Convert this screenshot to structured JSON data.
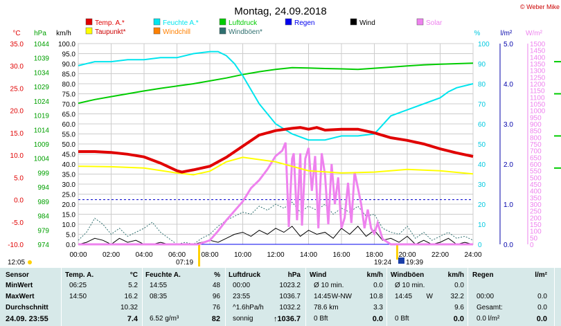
{
  "chart_data": {
    "type": "line",
    "title": "Montag, 24.09.2018",
    "copyright": "© Weber Mike",
    "legend": [
      {
        "label": "Temp. A.*",
        "color": "#e00000"
      },
      {
        "label": "Feuchte A.*",
        "color": "#00e5ee"
      },
      {
        "label": "Luftdruck",
        "color": "#00cc00"
      },
      {
        "label": "Regen",
        "color": "#0000ee"
      },
      {
        "label": "Wind",
        "color": "#000000"
      },
      {
        "label": "Solar",
        "color": "#ee82ee"
      },
      {
        "label": "Taupunkt*",
        "color": "#ffff00"
      },
      {
        "label": "Windchill",
        "color": "#ff8000"
      },
      {
        "label": "Windböen*",
        "color": "#2f6f6f"
      }
    ],
    "axes": {
      "temp": {
        "unit": "°C",
        "min": -10,
        "max": 35,
        "step": 5,
        "color": "#e00000"
      },
      "pressure": {
        "unit": "hPa",
        "min": 974,
        "max": 1044,
        "step": 5,
        "color": "#00a000"
      },
      "wind": {
        "unit": "km/h",
        "min": 0,
        "max": 100,
        "step": 5,
        "color": "#000000"
      },
      "humidity": {
        "unit": "%",
        "min": 0,
        "max": 100,
        "step": 10,
        "color": "#00c8e0"
      },
      "rain": {
        "unit": "l/m²",
        "min": 0,
        "max": 5,
        "step": 1,
        "color": "#0000aa"
      },
      "solar": {
        "unit": "W/m²",
        "min": 0,
        "max": 1500,
        "step": 50,
        "color": "#ee82ee"
      },
      "x_ticks": [
        "00:00",
        "02:00",
        "04:00",
        "06:00",
        "08:00",
        "10:00",
        "12:00",
        "14:00",
        "16:00",
        "18:00",
        "20:00",
        "22:00",
        "24:00"
      ]
    },
    "markers": {
      "sunrise_left": "12:05",
      "sunrise": "07:19",
      "sunset": "19:24",
      "moonrise": "19:39"
    },
    "series": {
      "temp": {
        "x": [
          0,
          1,
          2,
          3,
          4,
          5,
          6,
          6.3,
          7,
          8,
          9,
          10,
          11,
          12,
          13,
          13.5,
          14,
          14.5,
          15,
          16,
          17,
          18,
          19,
          20,
          21,
          22,
          23,
          24
        ],
        "y": [
          10.8,
          10.8,
          10.6,
          10.2,
          9.6,
          8.2,
          6.5,
          6.2,
          6.7,
          7.5,
          9.5,
          12,
          14.5,
          15.5,
          16,
          16.2,
          15.8,
          16.2,
          15.6,
          15.8,
          15.8,
          15,
          13.9,
          13.3,
          12.5,
          11.4,
          10.5,
          9.7
        ]
      },
      "dewpoint": {
        "x": [
          0,
          2,
          4,
          6,
          7,
          8,
          9,
          10,
          12,
          14,
          16,
          18,
          20,
          22,
          24
        ],
        "y": [
          7.5,
          7.4,
          7.1,
          6,
          5.6,
          6.4,
          8.5,
          9.5,
          8.5,
          6.5,
          6,
          6.2,
          6.8,
          6.5,
          5.8
        ]
      },
      "humidity": {
        "x": [
          0,
          1,
          2,
          3,
          4,
          5,
          6,
          7,
          8,
          8.5,
          9,
          9.5,
          10,
          11,
          12,
          13,
          14,
          15,
          16,
          17,
          18,
          19,
          20,
          21,
          22,
          22.5,
          23,
          24
        ],
        "y": [
          89,
          91,
          91,
          92,
          92,
          93,
          93,
          95,
          96,
          96,
          94,
          90,
          84,
          70,
          60,
          55,
          52,
          52,
          54,
          54,
          55,
          64,
          67,
          70,
          73,
          76,
          78,
          80
        ]
      },
      "pressure": {
        "x": [
          0,
          1,
          2,
          3,
          4,
          5,
          6,
          7,
          8,
          9,
          10,
          11,
          12,
          13,
          14,
          15,
          16,
          17,
          18,
          19,
          20,
          21,
          22,
          23,
          24
        ],
        "y": [
          1023.2,
          1024.5,
          1025.5,
          1026.5,
          1027.5,
          1028.4,
          1029.2,
          1030,
          1031,
          1032,
          1033.2,
          1034.2,
          1035,
          1035.6,
          1035.5,
          1035.3,
          1035.2,
          1035,
          1035.4,
          1035.8,
          1036.2,
          1036.6,
          1036.8,
          1037,
          1037.2
        ]
      },
      "solar": {
        "x": [
          0,
          7.3,
          8,
          8.5,
          9,
          9.5,
          10,
          10.5,
          11,
          11.5,
          12,
          12.4,
          12.6,
          12.8,
          13,
          13.1,
          13.3,
          13.5,
          13.6,
          13.8,
          14,
          14.2,
          14.4,
          14.6,
          14.8,
          15,
          15.2,
          15.4,
          15.6,
          15.8,
          16,
          16.2,
          16.4,
          16.6,
          16.8,
          17,
          17.2,
          17.4,
          17.6,
          17.8,
          18,
          18.2,
          18.5,
          19,
          24
        ],
        "y": [
          0,
          0,
          30,
          100,
          180,
          250,
          320,
          420,
          480,
          560,
          660,
          700,
          760,
          130,
          640,
          680,
          180,
          680,
          140,
          640,
          720,
          400,
          660,
          120,
          680,
          520,
          150,
          600,
          300,
          500,
          120,
          200,
          460,
          160,
          540,
          420,
          300,
          120,
          260,
          120,
          80,
          160,
          40,
          0,
          0
        ]
      },
      "wind": {
        "x": [
          0,
          0.5,
          1,
          1.5,
          2,
          2.5,
          3,
          3.5,
          4,
          4.5,
          5,
          5.5,
          6,
          6.5,
          7,
          7.5,
          8,
          8.5,
          9,
          9.5,
          10,
          10.5,
          11,
          11.5,
          12,
          12.5,
          13,
          13.5,
          14,
          14.5,
          15,
          15.5,
          16,
          16.5,
          17,
          17.5,
          18,
          18.5,
          19,
          19.5,
          20,
          20.5,
          21,
          21.5,
          22,
          22.5,
          23,
          23.5,
          24
        ],
        "y": [
          0,
          1,
          3,
          2,
          0,
          3,
          1,
          2,
          0,
          0,
          1,
          0,
          0,
          0,
          0,
          1,
          2,
          1,
          3,
          5,
          6,
          4,
          7,
          5,
          8,
          6,
          9,
          4,
          7,
          5,
          6,
          3,
          8,
          5,
          9,
          4,
          7,
          2,
          3,
          1,
          4,
          0,
          2,
          0,
          1,
          3,
          0,
          1,
          0
        ]
      },
      "gusts": {
        "x": [
          0,
          0.5,
          1,
          1.5,
          2,
          2.5,
          3,
          3.5,
          4,
          4.5,
          5,
          5.5,
          6,
          6.5,
          7,
          7.5,
          8,
          8.5,
          9,
          9.5,
          10,
          10.5,
          11,
          11.5,
          12,
          12.5,
          13,
          13.5,
          14,
          14.5,
          15,
          15.5,
          16,
          16.5,
          17,
          17.5,
          18,
          18.5,
          19,
          19.5,
          20,
          20.5,
          21,
          21.5,
          22,
          22.5,
          23,
          23.5,
          24
        ],
        "y": [
          2,
          6,
          13,
          10,
          5,
          8,
          4,
          6,
          8,
          11,
          6,
          3,
          0,
          1,
          0,
          3,
          5,
          9,
          12,
          14,
          16,
          15,
          19,
          17,
          20,
          18,
          21,
          16,
          19,
          17,
          20,
          15,
          18,
          16,
          19,
          14,
          15,
          8,
          6,
          5,
          9,
          3,
          6,
          2,
          4,
          6,
          3,
          4,
          2
        ]
      },
      "rain": {
        "x": [
          0,
          24
        ],
        "y": [
          0,
          0
        ]
      }
    }
  },
  "stats": {
    "sensor": {
      "header": "Sensor",
      "rows": [
        "MinWert",
        "MaxWert",
        "Durchschnitt",
        "24.09.  23:55"
      ]
    },
    "temp": {
      "header": "Temp. A.",
      "unit": "°C",
      "rows": [
        [
          "06:25",
          "5.2"
        ],
        [
          "14:50",
          "16.2"
        ],
        [
          "",
          "10.32"
        ],
        [
          "",
          "7.4"
        ]
      ]
    },
    "humidity": {
      "header": "Feuchte A.",
      "unit": "%",
      "rows": [
        [
          "14:55",
          "48"
        ],
        [
          "08:35",
          "96"
        ],
        [
          "",
          "76"
        ],
        [
          "6.52 g/m³",
          "82"
        ]
      ]
    },
    "pressure": {
      "header": "Luftdruck",
      "unit": "hPa",
      "rows": [
        [
          "00:00",
          "1023.2"
        ],
        [
          "23:55",
          "1036.7"
        ],
        [
          "^1.6hPa/h",
          "1032.2"
        ],
        [
          "sonnig",
          "↑1036.7"
        ]
      ]
    },
    "wind": {
      "header": "Wind",
      "unit": "km/h",
      "rows": [
        [
          "Ø 10 min.",
          "",
          "0.0"
        ],
        [
          "14:45",
          "W-NW",
          "10.8"
        ],
        [
          "78.6 km",
          "",
          "3.3"
        ],
        [
          "0 Bft",
          "",
          "0.0"
        ]
      ]
    },
    "gusts": {
      "header": "Windböen",
      "unit": "km/h",
      "rows": [
        [
          "Ø 10 min.",
          "",
          "0.0"
        ],
        [
          "14:45",
          "W",
          "32.2"
        ],
        [
          "",
          "",
          "9.6"
        ],
        [
          "0 Bft",
          "",
          "0.0"
        ]
      ]
    },
    "rain": {
      "header": "Regen",
      "unit": "l/m²",
      "rows": [
        [
          "",
          "",
          ""
        ],
        [
          "00:00",
          "",
          "0.0"
        ],
        [
          "Gesamt:",
          "",
          "0.0"
        ],
        [
          "0.0 l/m²",
          "",
          "0.0"
        ]
      ]
    }
  }
}
